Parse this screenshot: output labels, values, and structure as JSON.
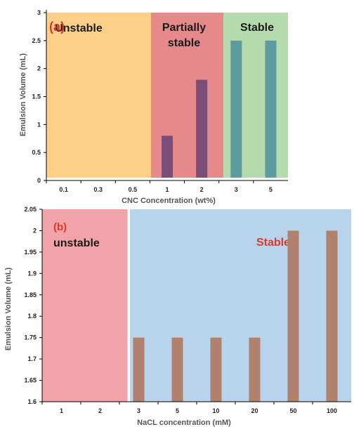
{
  "chart_data": [
    {
      "panel_label": "(a)",
      "type": "bar",
      "categories": [
        "0.1",
        "0.3",
        "0.5",
        "1",
        "2",
        "3",
        "5"
      ],
      "series": [
        {
          "values": [
            0,
            0,
            0,
            0.8,
            1.8,
            2.5,
            2.5
          ]
        }
      ],
      "xlabel": "CNC Concentration (wt%)",
      "ylabel": "Emulsion Volume (mL)",
      "ylim": [
        0,
        3
      ],
      "yticks": [
        "0",
        "0.5",
        "1",
        "1.5",
        "2",
        "2.5",
        "3"
      ],
      "grid": false,
      "regions": [
        {
          "label": "Unstable",
          "from_index": 0,
          "to_index": 2,
          "color": "#FDD08A"
        },
        {
          "label": "Partially stable",
          "from_index": 3,
          "to_index": 4,
          "color": "#E5898B"
        },
        {
          "label": "Stable",
          "from_index": 5,
          "to_index": 6,
          "color": "#B5DAAE"
        }
      ],
      "bar_colors": [
        "#7A4E78",
        "#7A4E78",
        "#7A4E78",
        "#7A4E78",
        "#7A4E78",
        "#5C9C9C",
        "#5C9C9C"
      ]
    },
    {
      "panel_label": "(b)",
      "type": "bar",
      "categories": [
        "1",
        "2",
        "3",
        "5",
        "10",
        "20",
        "50",
        "100"
      ],
      "series": [
        {
          "values": [
            1.6,
            1.6,
            1.75,
            1.75,
            1.75,
            1.75,
            2.0,
            2.0
          ]
        }
      ],
      "xlabel": "NaCL concentration (mM)",
      "ylabel": "Emulsion Volume (mL)",
      "ylim": [
        1.6,
        2.05
      ],
      "yticks": [
        "1.6",
        "1.65",
        "1.7",
        "1.75",
        "1.8",
        "1.85",
        "1.9",
        "1.95",
        "2",
        "2.05"
      ],
      "grid": false,
      "regions": [
        {
          "label": "unstable",
          "from_index": 0,
          "to_index": 1,
          "color": "#F2A3A9"
        },
        {
          "label": "Stable",
          "from_index": 2,
          "to_index": 7,
          "color": "#B8D3EC"
        }
      ],
      "bar_color": "#B0826E"
    }
  ]
}
